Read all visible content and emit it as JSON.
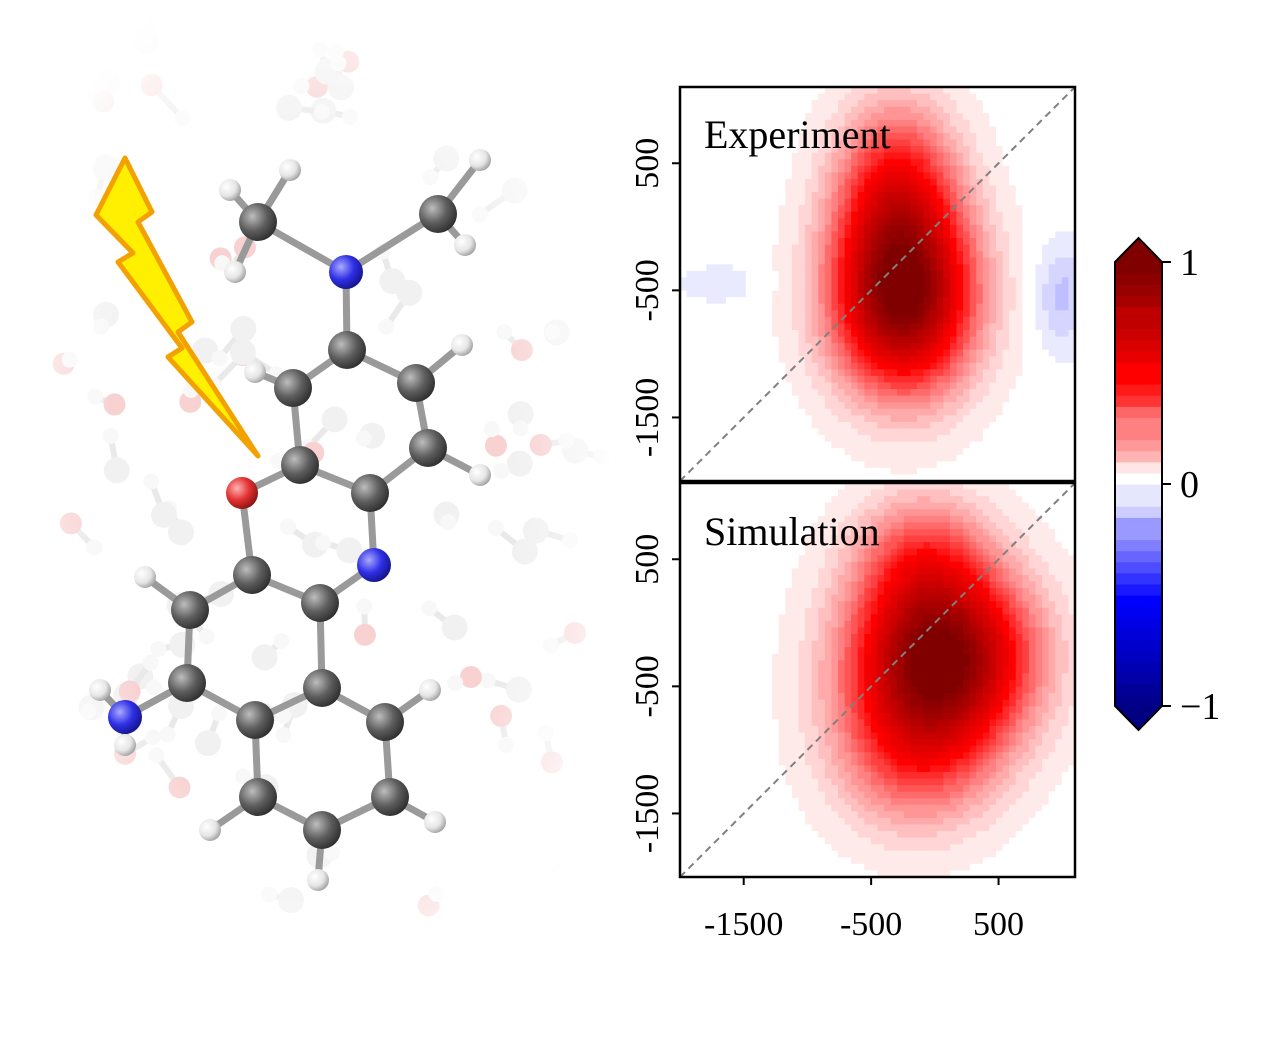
{
  "illustration": {
    "description_icon": "molecule-in-solvent",
    "excitation_icon": "lightning-bolt-icon",
    "atom_colors": {
      "carbon": "#5a5a5a",
      "nitrogen": "#2b2be8",
      "oxygen": "#e03030",
      "hydrogen": "#f2f2f2"
    },
    "bolt_color": "#ffee00",
    "bolt_outline": "#f0a000"
  },
  "chart_data": [
    {
      "type": "heatmap",
      "title": "Experiment",
      "xlim": [
        -2000,
        1100
      ],
      "ylim": [
        -2000,
        1100
      ],
      "xticks": [],
      "yticks": [
        500,
        -500,
        -1500
      ],
      "ytick_labels": [
        "500",
        "-500",
        "-1500"
      ],
      "diagonal": true,
      "peaks": [
        {
          "x": -250,
          "y": -550,
          "amplitude": 1.0,
          "sx": 520,
          "sy": 700,
          "rotation": 0
        },
        {
          "x": -300,
          "y": 300,
          "amplitude": 0.45,
          "sx": 450,
          "sy": 650,
          "rotation": 0
        },
        {
          "x": 1000,
          "y": -550,
          "amplitude": -0.12,
          "sx": 200,
          "sy": 400,
          "rotation": 0
        },
        {
          "x": -1700,
          "y": -450,
          "amplitude": -0.05,
          "sx": 300,
          "sy": 150,
          "rotation": 0
        }
      ]
    },
    {
      "type": "heatmap",
      "title": "Simulation",
      "xlim": [
        -2000,
        1100
      ],
      "ylim": [
        -2000,
        1100
      ],
      "xticks": [
        -1500,
        -500,
        500
      ],
      "xtick_labels": [
        "-1500",
        "-500",
        "500"
      ],
      "yticks": [
        500,
        -500,
        -1500
      ],
      "ytick_labels": [
        "500",
        "-500",
        "-1500"
      ],
      "diagonal": true,
      "peaks": [
        {
          "x": 50,
          "y": -270,
          "amplitude": 1.0,
          "sx": 650,
          "sy": 650,
          "rotation": 0
        },
        {
          "x": -150,
          "y": -1000,
          "amplitude": 0.35,
          "sx": 600,
          "sy": 600,
          "rotation": 0
        },
        {
          "x": -100,
          "y": 500,
          "amplitude": 0.3,
          "sx": 500,
          "sy": 500,
          "rotation": 0
        }
      ]
    }
  ],
  "colorbar": {
    "colormap": "seismic",
    "ticks": [
      1,
      0,
      -1
    ],
    "tick_labels": [
      "1",
      "0",
      "−1"
    ],
    "extend": "both"
  }
}
